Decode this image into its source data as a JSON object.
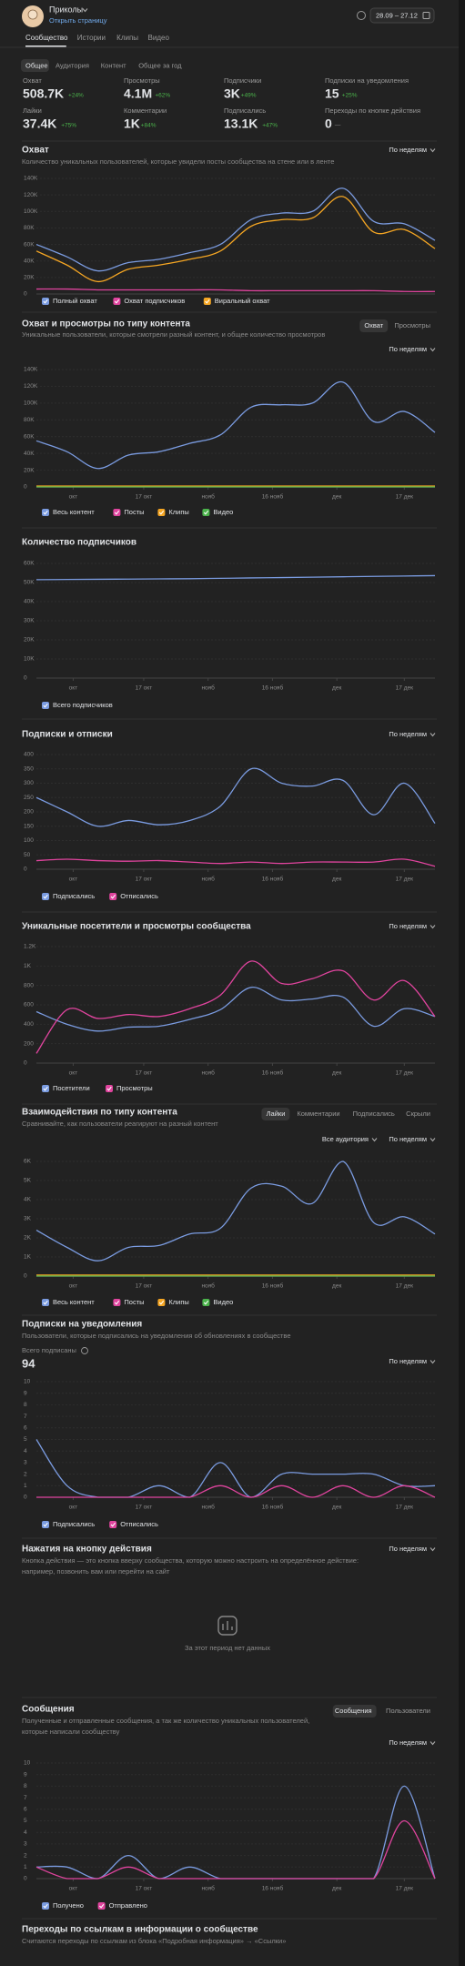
{
  "header": {
    "name": "Приколы",
    "link": "Открыть страницу",
    "dates": "28.09 – 27.12"
  },
  "tabs": [
    "Сообщество",
    "Истории",
    "Клипы",
    "Видео"
  ],
  "subtabs": [
    "Общее",
    "Аудитория",
    "Контент",
    "Общее за год"
  ],
  "stats": [
    {
      "label": "Охват",
      "value": "508.7K",
      "change": "+24%"
    },
    {
      "label": "Просмотры",
      "value": "4.1M",
      "change": "+62%"
    },
    {
      "label": "Подписчики",
      "value": "3K",
      "change": "+49%"
    },
    {
      "label": "Подписки на уведомления",
      "value": "15",
      "change": "+25%"
    },
    {
      "label": "Лайки",
      "value": "37.4K",
      "change": "+75%"
    },
    {
      "label": "Комментарии",
      "value": "1K",
      "change": "+84%"
    },
    {
      "label": "Подписались",
      "value": "13.1K",
      "change": "+47%"
    },
    {
      "label": "Переходы по кнопке действия",
      "value": "0",
      "change": "—"
    }
  ],
  "chart_data": [
    {
      "type": "line",
      "title": "Охват",
      "subtitle": "Количество уникальных пользователей, которые увидели посты сообщества на стене или в ленте",
      "dropdowns": [
        "По неделям"
      ],
      "x": [
        0,
        1,
        2,
        3,
        4,
        5,
        6,
        7,
        8,
        9,
        10,
        11,
        12,
        13
      ],
      "xlim": [
        0,
        13
      ],
      "ylim": [
        0,
        140000
      ],
      "yticks": [
        0,
        {
          "value": 20000,
          "label": "20K"
        },
        {
          "value": 40000,
          "label": "40K"
        },
        {
          "value": 60000,
          "label": "60K"
        },
        {
          "value": 80000,
          "label": "80K"
        },
        {
          "value": 100000,
          "label": "100K"
        },
        {
          "value": 120000,
          "label": "120K"
        },
        {
          "value": 140000,
          "label": "140K"
        }
      ],
      "series": [
        {
          "name": "Полный охват",
          "color": "#7a9be0",
          "values": [
            60000,
            45000,
            28000,
            38000,
            42000,
            50000,
            60000,
            90000,
            98000,
            100000,
            128000,
            88000,
            85000,
            65000
          ]
        },
        {
          "name": "Охват подписчиков",
          "color": "#e0449e",
          "values": [
            6000,
            6000,
            5000,
            5000,
            5000,
            5000,
            5000,
            4000,
            4000,
            4000,
            4000,
            4000,
            3000,
            3000
          ]
        },
        {
          "name": "Виральный охват",
          "color": "#f5a623",
          "values": [
            52000,
            35000,
            15000,
            30000,
            35000,
            42000,
            52000,
            82000,
            90000,
            92000,
            118000,
            75000,
            78000,
            55000
          ]
        }
      ]
    },
    {
      "type": "line",
      "title": "Охват и просмотры по типу контента",
      "subtitle": "Уникальные пользователи, которые смотрели разный контент, и общее количество просмотров",
      "toggles": [
        "Охват",
        "Просмотры"
      ],
      "dropdowns": [
        "По неделям"
      ],
      "x": [
        0,
        1,
        2,
        3,
        4,
        5,
        6,
        7,
        8,
        9,
        10,
        11,
        12,
        13
      ],
      "xlim": [
        0,
        13
      ],
      "xticks": [
        {
          "value": 1.2,
          "label": "окт"
        },
        {
          "value": 3.5,
          "label": "17 окт"
        },
        {
          "value": 5.6,
          "label": "нояб"
        },
        {
          "value": 7.7,
          "label": "16 нояб"
        },
        {
          "value": 9.8,
          "label": "дек"
        },
        {
          "value": 12,
          "label": "17 дек"
        }
      ],
      "ylim": [
        0,
        140000
      ],
      "yticks": [
        0,
        {
          "value": 20000,
          "label": "20K"
        },
        {
          "value": 40000,
          "label": "40K"
        },
        {
          "value": 60000,
          "label": "60K"
        },
        {
          "value": 80000,
          "label": "80K"
        },
        {
          "value": 100000,
          "label": "100K"
        },
        {
          "value": 120000,
          "label": "120K"
        },
        {
          "value": 140000,
          "label": "140K"
        }
      ],
      "series": [
        {
          "name": "Весь контент",
          "color": "#7a9be0",
          "values": [
            55000,
            42000,
            22000,
            38000,
            42000,
            52000,
            62000,
            95000,
            98000,
            100000,
            125000,
            78000,
            90000,
            65000
          ]
        },
        {
          "name": "Посты",
          "color": "#e0449e",
          "values": [
            0,
            0,
            0,
            0,
            0,
            0,
            0,
            0,
            0,
            0,
            0,
            0,
            0,
            0
          ]
        },
        {
          "name": "Клипы",
          "color": "#f5a623",
          "values": [
            1000,
            1000,
            1000,
            1000,
            1000,
            1000,
            1000,
            1000,
            1000,
            1000,
            1000,
            1000,
            1000,
            1000
          ]
        },
        {
          "name": "Видео",
          "color": "#4bb34b",
          "values": [
            0,
            0,
            0,
            0,
            0,
            0,
            0,
            0,
            0,
            0,
            0,
            0,
            0,
            0
          ]
        }
      ]
    },
    {
      "type": "line",
      "title": "Количество подписчиков",
      "x": [
        0,
        1,
        2,
        3,
        4,
        5,
        6,
        7,
        8,
        9,
        10,
        11,
        12,
        13
      ],
      "xlim": [
        0,
        13
      ],
      "xticks": [
        {
          "value": 1.2,
          "label": "окт"
        },
        {
          "value": 3.5,
          "label": "17 окт"
        },
        {
          "value": 5.6,
          "label": "нояб"
        },
        {
          "value": 7.7,
          "label": "16 нояб"
        },
        {
          "value": 9.8,
          "label": "дек"
        },
        {
          "value": 12,
          "label": "17 дек"
        }
      ],
      "ylim": [
        0,
        60000
      ],
      "yticks": [
        0,
        {
          "value": 10000,
          "label": "10K"
        },
        {
          "value": 20000,
          "label": "20K"
        },
        {
          "value": 30000,
          "label": "30K"
        },
        {
          "value": 40000,
          "label": "40K"
        },
        {
          "value": 50000,
          "label": "50K"
        },
        {
          "value": 60000,
          "label": "60K"
        }
      ],
      "series": [
        {
          "name": "Всего подписчиков",
          "color": "#7a9be0",
          "values": [
            51500,
            51600,
            51700,
            51800,
            51900,
            52000,
            52200,
            52400,
            52600,
            52800,
            53000,
            53200,
            53400,
            53600
          ]
        }
      ]
    },
    {
      "type": "line",
      "title": "Подписки и отписки",
      "dropdowns": [
        "По неделям"
      ],
      "x": [
        0,
        1,
        2,
        3,
        4,
        5,
        6,
        7,
        8,
        9,
        10,
        11,
        12,
        13
      ],
      "xlim": [
        0,
        13
      ],
      "xticks": [
        {
          "value": 1.2,
          "label": "окт"
        },
        {
          "value": 3.5,
          "label": "17 окт"
        },
        {
          "value": 5.6,
          "label": "нояб"
        },
        {
          "value": 7.7,
          "label": "16 нояб"
        },
        {
          "value": 9.8,
          "label": "дек"
        },
        {
          "value": 12,
          "label": "17 дек"
        }
      ],
      "ylim": [
        0,
        400
      ],
      "yticks": [
        0,
        50,
        100,
        150,
        200,
        250,
        300,
        350,
        400
      ],
      "series": [
        {
          "name": "Подписались",
          "color": "#7a9be0",
          "values": [
            250,
            200,
            150,
            170,
            155,
            170,
            220,
            350,
            300,
            290,
            310,
            190,
            300,
            160
          ]
        },
        {
          "name": "Отписались",
          "color": "#e0449e",
          "values": [
            30,
            35,
            30,
            28,
            30,
            25,
            20,
            25,
            20,
            25,
            25,
            25,
            35,
            10
          ]
        }
      ]
    },
    {
      "type": "line",
      "title": "Уникальные посетители и просмотры сообщества",
      "dropdowns": [
        "По неделям"
      ],
      "x": [
        0,
        1,
        2,
        3,
        4,
        5,
        6,
        7,
        8,
        9,
        10,
        11,
        12,
        13
      ],
      "xlim": [
        0,
        13
      ],
      "xticks": [
        {
          "value": 1.2,
          "label": "окт"
        },
        {
          "value": 3.5,
          "label": "17 окт"
        },
        {
          "value": 5.6,
          "label": "нояб"
        },
        {
          "value": 7.7,
          "label": "16 нояб"
        },
        {
          "value": 9.8,
          "label": "дек"
        },
        {
          "value": 12,
          "label": "17 дек"
        }
      ],
      "ylim": [
        0,
        1200
      ],
      "yticks": [
        0,
        200,
        400,
        600,
        800,
        {
          "value": 1000,
          "label": "1K"
        },
        {
          "value": 1200,
          "label": "1.2K"
        }
      ],
      "series": [
        {
          "name": "Посетители",
          "color": "#7a9be0",
          "values": [
            530,
            400,
            330,
            370,
            380,
            450,
            550,
            780,
            650,
            660,
            680,
            380,
            560,
            480
          ]
        },
        {
          "name": "Просмотры",
          "color": "#e0449e",
          "values": [
            100,
            550,
            460,
            500,
            480,
            560,
            700,
            1050,
            820,
            870,
            950,
            650,
            850,
            480
          ]
        }
      ]
    },
    {
      "type": "line",
      "title": "Взаимодействия по типу контента",
      "subtitle": "Сравнивайте, как пользователи реагируют на разный контент",
      "toggles": [
        "Лайки",
        "Комментарии",
        "Подписались",
        "Скрыли"
      ],
      "dropdowns": [
        "Все аудитория",
        "По неделям"
      ],
      "x": [
        0,
        1,
        2,
        3,
        4,
        5,
        6,
        7,
        8,
        9,
        10,
        11,
        12,
        13
      ],
      "xlim": [
        0,
        13
      ],
      "xticks": [
        {
          "value": 1.2,
          "label": "окт"
        },
        {
          "value": 3.5,
          "label": "17 окт"
        },
        {
          "value": 5.6,
          "label": "нояб"
        },
        {
          "value": 7.7,
          "label": "16 нояб"
        },
        {
          "value": 9.8,
          "label": "дек"
        },
        {
          "value": 12,
          "label": "17 дек"
        }
      ],
      "ylim": [
        0,
        6000
      ],
      "yticks": [
        0,
        {
          "value": 1000,
          "label": "1K"
        },
        {
          "value": 2000,
          "label": "2K"
        },
        {
          "value": 3000,
          "label": "3K"
        },
        {
          "value": 4000,
          "label": "4K"
        },
        {
          "value": 5000,
          "label": "5K"
        },
        {
          "value": 6000,
          "label": "6K"
        }
      ],
      "series": [
        {
          "name": "Весь контент",
          "color": "#7a9be0",
          "values": [
            2400,
            1500,
            800,
            1500,
            1600,
            2200,
            2500,
            4600,
            4700,
            3800,
            6000,
            2800,
            3100,
            2200
          ]
        },
        {
          "name": "Посты",
          "color": "#e0449e",
          "values": [
            0,
            0,
            0,
            0,
            0,
            0,
            0,
            0,
            0,
            0,
            0,
            0,
            0,
            0
          ]
        },
        {
          "name": "Клипы",
          "color": "#f5a623",
          "values": [
            50,
            50,
            50,
            50,
            50,
            50,
            50,
            50,
            50,
            50,
            50,
            50,
            50,
            50
          ]
        },
        {
          "name": "Видео",
          "color": "#4bb34b",
          "values": [
            0,
            0,
            0,
            0,
            0,
            0,
            0,
            0,
            0,
            0,
            0,
            0,
            0,
            0
          ]
        }
      ]
    },
    {
      "type": "line",
      "title": "Подписки на уведомления",
      "subtitle": "Пользователи, которые подписались на уведомления об обновлениях в сообществе",
      "total_label": "Всего подписаны",
      "total": "94",
      "dropdowns": [
        "По неделям"
      ],
      "x": [
        0,
        1,
        2,
        3,
        4,
        5,
        6,
        7,
        8,
        9,
        10,
        11,
        12,
        13
      ],
      "xlim": [
        0,
        13
      ],
      "xticks": [
        {
          "value": 1.2,
          "label": "окт"
        },
        {
          "value": 3.5,
          "label": "17 окт"
        },
        {
          "value": 5.6,
          "label": "нояб"
        },
        {
          "value": 7.7,
          "label": "16 нояб"
        },
        {
          "value": 9.8,
          "label": "дек"
        },
        {
          "value": 12,
          "label": "17 дек"
        }
      ],
      "ylim": [
        0,
        10
      ],
      "yticks": [
        0,
        1,
        2,
        3,
        4,
        5,
        6,
        7,
        8,
        9,
        10
      ],
      "series": [
        {
          "name": "Подписались",
          "color": "#7a9be0",
          "values": [
            5,
            1,
            0,
            0,
            1,
            0,
            3,
            0,
            2,
            2,
            2,
            2,
            1,
            1
          ]
        },
        {
          "name": "Отписались",
          "color": "#e0449e",
          "values": [
            0,
            0,
            0,
            0,
            0,
            0,
            1,
            0,
            1,
            0,
            1,
            0,
            1,
            0
          ]
        }
      ]
    },
    {
      "type": "line",
      "title": "Сообщения",
      "subtitle": [
        "Полученные и отправленные сообщения, а так же количество уникальных пользователей,",
        "которые написали сообществу"
      ],
      "toggles": [
        "Сообщения",
        "Пользователи"
      ],
      "dropdowns": [
        "По неделям"
      ],
      "x": [
        0,
        1,
        2,
        3,
        4,
        5,
        6,
        7,
        8,
        9,
        10,
        11,
        12,
        13
      ],
      "xlim": [
        0,
        13
      ],
      "xticks": [
        {
          "value": 1.2,
          "label": "окт"
        },
        {
          "value": 3.5,
          "label": "17 окт"
        },
        {
          "value": 5.6,
          "label": "нояб"
        },
        {
          "value": 7.7,
          "label": "16 нояб"
        },
        {
          "value": 9.8,
          "label": "дек"
        },
        {
          "value": 12,
          "label": "17 дек"
        }
      ],
      "ylim": [
        0,
        10
      ],
      "yticks": [
        0,
        1,
        2,
        3,
        4,
        5,
        6,
        7,
        8,
        9,
        10
      ],
      "series": [
        {
          "name": "Получено",
          "color": "#7a9be0",
          "values": [
            1,
            1,
            0,
            2,
            0,
            1,
            0,
            0,
            0,
            0,
            0,
            0,
            8,
            0
          ]
        },
        {
          "name": "Отправлено",
          "color": "#e0449e",
          "values": [
            1,
            0,
            0,
            1,
            0,
            0,
            0,
            0,
            0,
            0,
            0,
            0,
            5,
            0
          ]
        }
      ]
    }
  ],
  "empty_section": {
    "title": "Нажатия на кнопку действия",
    "subtitle": [
      "Кнопка действия — это кнопка вверху сообщества, которую можно настроить на определённое действие:",
      "например, позвонить вам или перейти на сайт"
    ],
    "dropdown": "По неделям",
    "message": "За этот период нет данных"
  },
  "last_section": {
    "title": "Переходы по ссылкам в информации о сообществе",
    "subtitle": "Считаются переходы по ссылкам из блока «Подробная информация» → «Ссылки»"
  }
}
